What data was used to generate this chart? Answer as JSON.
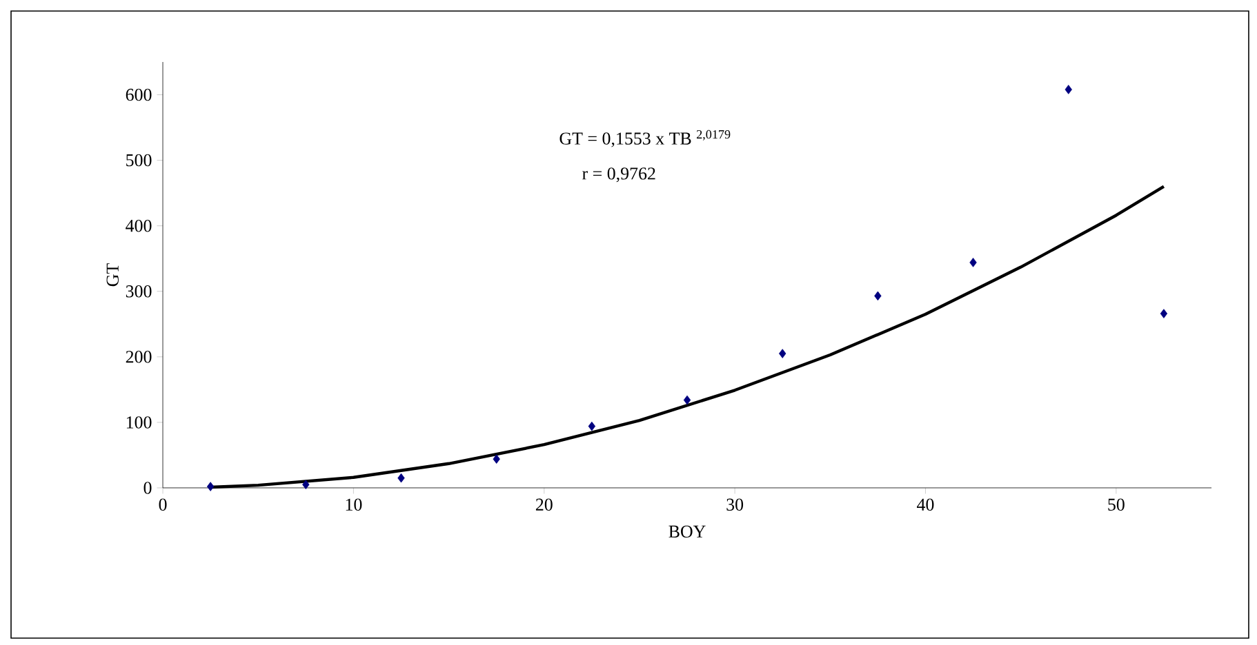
{
  "chart_data": {
    "type": "scatter",
    "xlabel": "BOY",
    "ylabel": "GT",
    "marker": "diamond",
    "grid": false,
    "xlim": [
      0,
      55
    ],
    "ylim": [
      0,
      650
    ],
    "xticks": [
      0,
      10,
      20,
      30,
      40,
      50
    ],
    "yticks": [
      0,
      100,
      200,
      300,
      400,
      500,
      600
    ],
    "annotations": [
      "GT = 0,1553  x TB $^{2,0179}$",
      "r = 0,9762"
    ],
    "series": [
      {
        "color": "#000080",
        "x": [
          2.5,
          7.5,
          12.5,
          17.5,
          22.5,
          27.5,
          32.5,
          37.5,
          42.5,
          47.5,
          52.5
        ],
        "values": [
          2,
          5,
          15,
          44,
          94,
          134,
          205,
          293,
          344,
          608,
          266
        ]
      },
      {
        "type": "line",
        "color": "#000000",
        "line_style": "solid",
        "marker": "none",
        "x": [
          2.5,
          5,
          10,
          15,
          20,
          25,
          30,
          35,
          40,
          45,
          50,
          52.5
        ],
        "values": [
          1,
          4,
          16,
          37,
          66,
          103,
          149,
          203,
          265,
          337,
          416,
          460
        ]
      }
    ]
  }
}
